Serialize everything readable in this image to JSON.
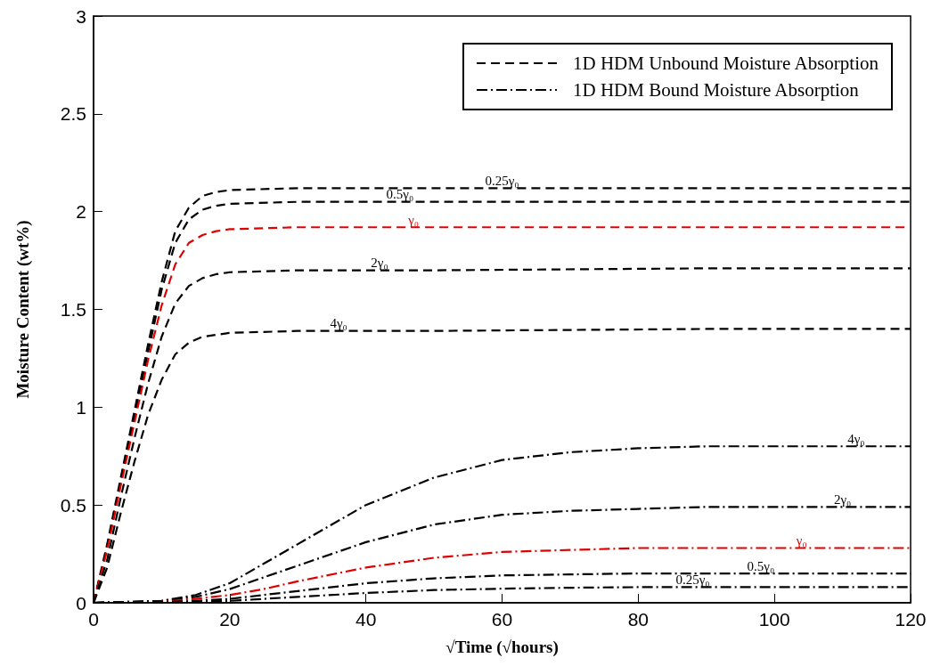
{
  "chart_data": {
    "type": "line",
    "xlabel": "√Time (√hours)",
    "ylabel": "Moisture Content (wt%)",
    "xlim": [
      0,
      120
    ],
    "xticks": [
      0,
      20,
      40,
      60,
      80,
      100,
      120
    ],
    "ylim": [
      0,
      3
    ],
    "yticks": [
      0,
      0.5,
      1,
      1.5,
      2,
      2.5,
      3
    ],
    "grid": false,
    "marker": "none",
    "annotations": [
      "1D HDM Unbound Moisture Absorption",
      "1D HDM Bound Moisture Absorption"
    ],
    "series": [
      {
        "name": "0.25γ₀",
        "color": "#000000",
        "line_style": "dashed",
        "x": [
          0,
          2,
          4,
          6,
          8,
          10,
          12,
          14,
          16,
          18,
          20,
          30,
          50,
          90,
          120
        ],
        "values": [
          0,
          0.3,
          0.64,
          0.98,
          1.32,
          1.64,
          1.9,
          2.02,
          2.08,
          2.1,
          2.11,
          2.12,
          2.12,
          2.12,
          2.12
        ]
      },
      {
        "name": "0.5γ₀",
        "color": "#000000",
        "line_style": "dashed",
        "x": [
          0,
          2,
          4,
          6,
          8,
          10,
          12,
          14,
          16,
          18,
          20,
          30,
          50,
          90,
          120
        ],
        "values": [
          0,
          0.28,
          0.62,
          0.95,
          1.28,
          1.6,
          1.84,
          1.96,
          2.01,
          2.03,
          2.04,
          2.05,
          2.05,
          2.05,
          2.05
        ]
      },
      {
        "name": "γ₀",
        "color": "#e00000",
        "line_style": "dashed",
        "x": [
          0,
          2,
          4,
          6,
          8,
          10,
          12,
          14,
          16,
          18,
          20,
          30,
          50,
          90,
          120
        ],
        "values": [
          0,
          0.27,
          0.6,
          0.92,
          1.24,
          1.52,
          1.73,
          1.84,
          1.88,
          1.9,
          1.91,
          1.92,
          1.92,
          1.92,
          1.92
        ]
      },
      {
        "name": "2γ₀",
        "color": "#000000",
        "line_style": "dashed",
        "x": [
          0,
          2,
          4,
          6,
          8,
          10,
          12,
          14,
          16,
          18,
          20,
          30,
          50,
          90,
          120
        ],
        "values": [
          0,
          0.22,
          0.54,
          0.84,
          1.12,
          1.36,
          1.53,
          1.62,
          1.66,
          1.68,
          1.69,
          1.7,
          1.7,
          1.71,
          1.71
        ]
      },
      {
        "name": "4γ₀",
        "color": "#000000",
        "line_style": "dashed",
        "x": [
          0,
          2,
          4,
          6,
          8,
          10,
          12,
          14,
          16,
          18,
          20,
          30,
          50,
          90,
          120
        ],
        "values": [
          0,
          0.18,
          0.46,
          0.72,
          0.96,
          1.14,
          1.27,
          1.33,
          1.36,
          1.37,
          1.38,
          1.39,
          1.39,
          1.4,
          1.4
        ]
      },
      {
        "name": "4γ₀",
        "color": "#000000",
        "line_style": "dashdot",
        "x": [
          0,
          10,
          15,
          20,
          25,
          30,
          40,
          50,
          60,
          70,
          80,
          90,
          110,
          120
        ],
        "values": [
          0,
          0.01,
          0.04,
          0.1,
          0.2,
          0.3,
          0.5,
          0.64,
          0.73,
          0.77,
          0.79,
          0.8,
          0.8,
          0.8
        ]
      },
      {
        "name": "2γ₀",
        "color": "#000000",
        "line_style": "dashdot",
        "x": [
          0,
          10,
          15,
          20,
          25,
          30,
          40,
          50,
          60,
          70,
          80,
          90,
          110,
          120
        ],
        "values": [
          0,
          0.01,
          0.03,
          0.07,
          0.13,
          0.19,
          0.31,
          0.4,
          0.45,
          0.47,
          0.48,
          0.49,
          0.49,
          0.49
        ]
      },
      {
        "name": "γ₀",
        "color": "#e00000",
        "line_style": "dashdot",
        "x": [
          0,
          10,
          15,
          20,
          25,
          30,
          40,
          50,
          60,
          70,
          80,
          90,
          110,
          120
        ],
        "values": [
          0,
          0.005,
          0.02,
          0.04,
          0.07,
          0.11,
          0.18,
          0.23,
          0.26,
          0.27,
          0.28,
          0.28,
          0.28,
          0.28
        ]
      },
      {
        "name": "0.5γ₀",
        "color": "#000000",
        "line_style": "dashdot",
        "x": [
          0,
          10,
          15,
          20,
          25,
          30,
          40,
          50,
          60,
          70,
          80,
          90,
          110,
          120
        ],
        "values": [
          0,
          0.003,
          0.01,
          0.02,
          0.04,
          0.06,
          0.1,
          0.125,
          0.14,
          0.145,
          0.15,
          0.15,
          0.15,
          0.15
        ]
      },
      {
        "name": "0.25γ₀",
        "color": "#000000",
        "line_style": "dashdot",
        "x": [
          0,
          10,
          15,
          20,
          25,
          30,
          40,
          50,
          60,
          70,
          80,
          90,
          110,
          120
        ],
        "values": [
          0,
          0.002,
          0.005,
          0.01,
          0.02,
          0.03,
          0.05,
          0.065,
          0.072,
          0.077,
          0.08,
          0.08,
          0.08,
          0.08
        ]
      }
    ]
  }
}
